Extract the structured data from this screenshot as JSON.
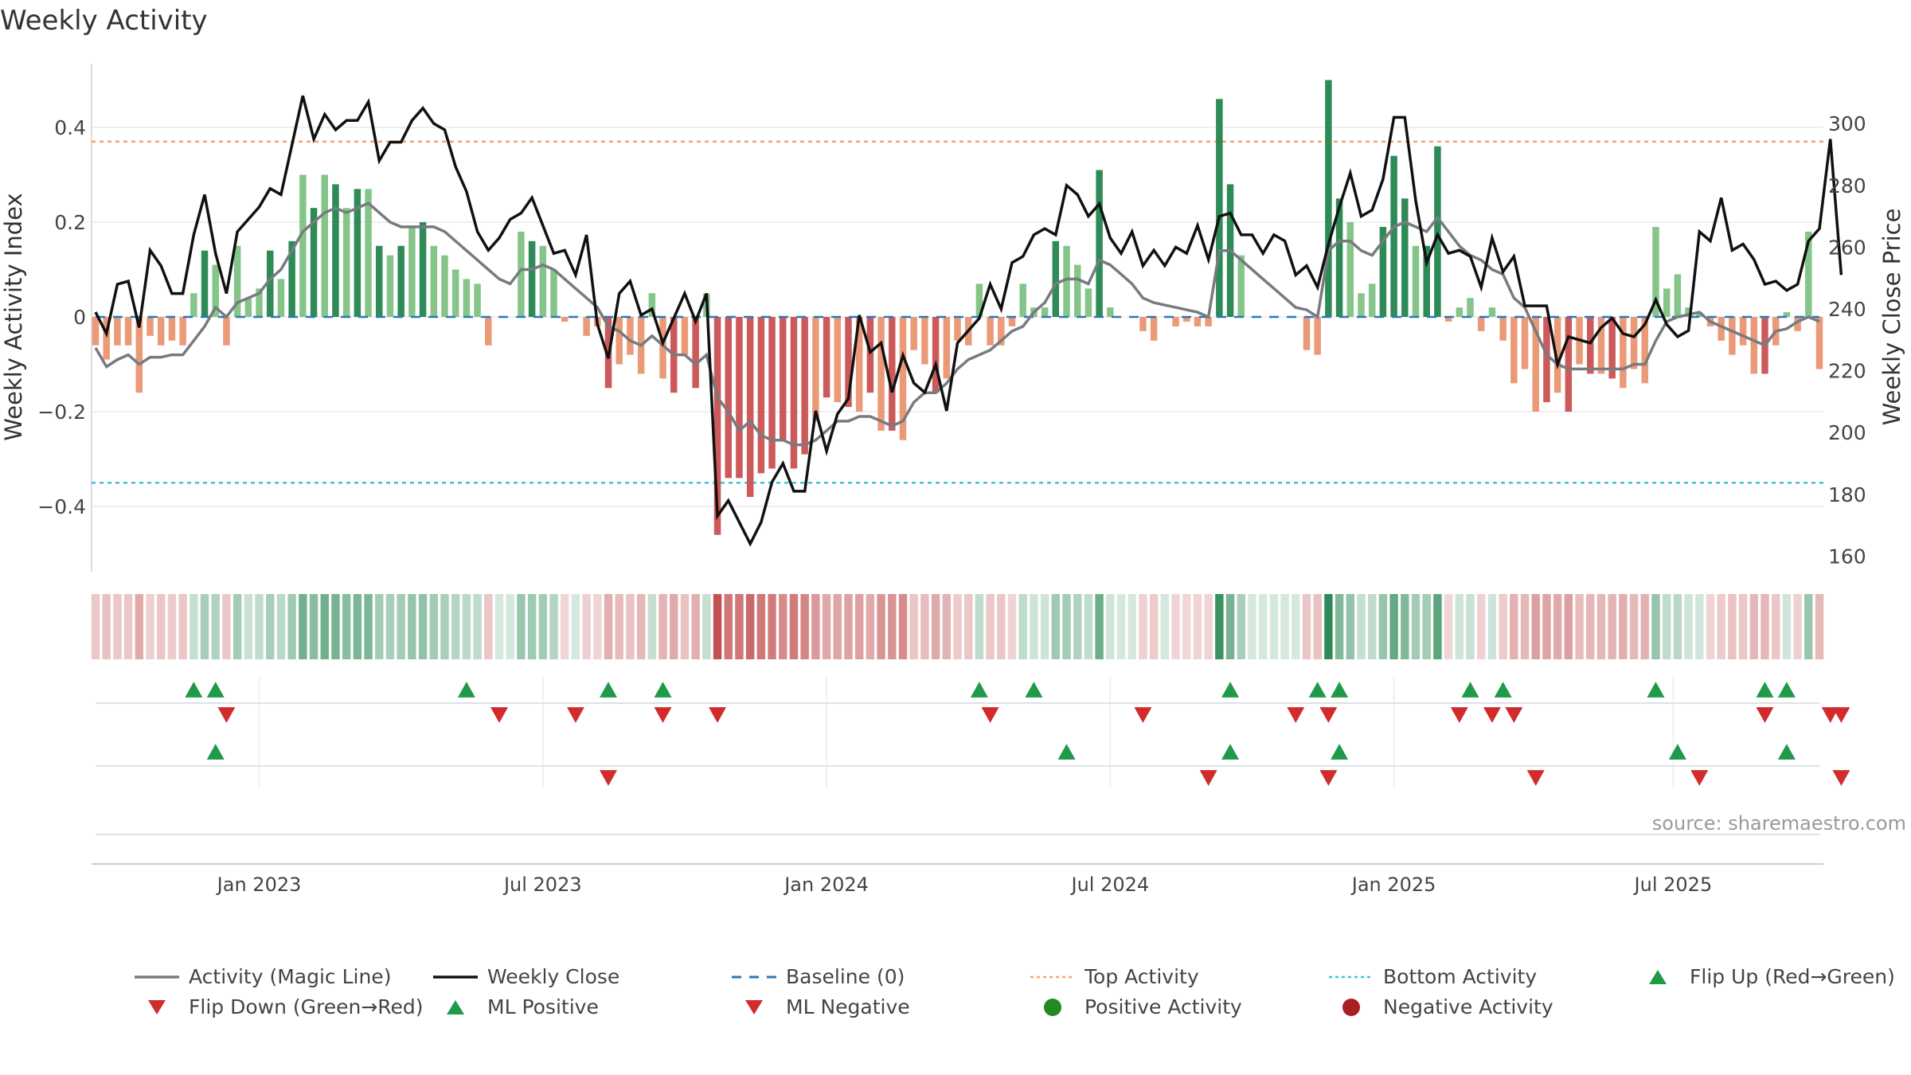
{
  "title": "Weekly Activity",
  "source": "source: sharemaestro.com",
  "colors": {
    "magic": "#777b80",
    "close": "#111111",
    "baseline": "#2a78b8",
    "top": "#f2a36b",
    "bottom": "#3ac5d8",
    "pos_strong": "#2e8b57",
    "pos_light": "#86c58a",
    "neg_strong": "#cc5a5a",
    "neg_light": "#eb9a78",
    "up": "#1f9a49",
    "down": "#d12b2b"
  },
  "chart_data": {
    "type": "bar",
    "title": "Weekly Activity",
    "ylabel": "Weekly Activity Index",
    "y2label": "Weekly Close Price",
    "ylim": [
      -0.53,
      0.54
    ],
    "y2lim": [
      154,
      318
    ],
    "yticks": [
      "0.4",
      "0.2",
      "0",
      "−0.2",
      "−0.4"
    ],
    "yticks_values": [
      0.4,
      0.2,
      0,
      -0.2,
      -0.4
    ],
    "y2ticks": [
      "300",
      "280",
      "260",
      "240",
      "220",
      "200",
      "180",
      "160"
    ],
    "y2ticks_values": [
      300,
      280,
      260,
      240,
      220,
      200,
      180,
      160
    ],
    "xticks": [
      "Jan 2023",
      "Jul 2023",
      "Jan 2024",
      "Jul 2024",
      "Jan 2025",
      "Jul 2025"
    ],
    "xticks_index": [
      15.0,
      41.0,
      67.0,
      93.0,
      119.0,
      144.6
    ],
    "top_activity": 0.37,
    "bottom_activity": -0.35,
    "activity": [
      -0.06,
      -0.09,
      -0.06,
      -0.06,
      -0.16,
      -0.04,
      -0.06,
      -0.05,
      -0.06,
      0.05,
      0.14,
      0.11,
      -0.06,
      0.15,
      0.04,
      0.06,
      0.14,
      0.08,
      0.16,
      0.3,
      0.23,
      0.3,
      0.28,
      0.23,
      0.27,
      0.27,
      0.15,
      0.13,
      0.15,
      0.19,
      0.2,
      0.15,
      0.13,
      0.1,
      0.08,
      0.07,
      -0.06,
      0.0,
      0.0,
      0.18,
      0.16,
      0.15,
      0.1,
      -0.01,
      0.0,
      -0.04,
      -0.02,
      -0.15,
      -0.1,
      -0.08,
      -0.12,
      0.05,
      -0.13,
      -0.16,
      -0.08,
      -0.15,
      0.05,
      -0.46,
      -0.34,
      -0.34,
      -0.38,
      -0.33,
      -0.32,
      -0.26,
      -0.32,
      -0.29,
      -0.22,
      -0.17,
      -0.18,
      -0.19,
      -0.2,
      -0.16,
      -0.24,
      -0.24,
      -0.26,
      -0.07,
      -0.1,
      -0.16,
      -0.13,
      -0.05,
      -0.06,
      0.07,
      -0.06,
      -0.06,
      -0.02,
      0.07,
      0.02,
      0.02,
      0.16,
      0.15,
      0.11,
      0.06,
      0.31,
      0.02,
      0.0,
      0.0,
      -0.03,
      -0.05,
      0.0,
      -0.02,
      -0.01,
      -0.02,
      -0.02,
      0.46,
      0.28,
      0.13,
      0.0,
      0.0,
      0.0,
      0.0,
      0.0,
      -0.07,
      -0.08,
      0.5,
      0.25,
      0.2,
      0.05,
      0.07,
      0.19,
      0.34,
      0.25,
      0.15,
      0.15,
      0.36,
      -0.01,
      0.02,
      0.04,
      -0.03,
      0.02,
      -0.05,
      -0.14,
      -0.11,
      -0.2,
      -0.18,
      -0.16,
      -0.2,
      -0.1,
      -0.12,
      -0.12,
      -0.13,
      -0.15,
      -0.11,
      -0.14,
      0.19,
      0.06,
      0.09,
      0.02,
      0.01,
      -0.02,
      -0.05,
      -0.08,
      -0.06,
      -0.12,
      -0.12,
      -0.06,
      0.01,
      -0.03,
      0.18,
      -0.11
    ],
    "magic_line": [
      -0.065,
      -0.105,
      -0.09,
      -0.08,
      -0.1,
      -0.085,
      -0.085,
      -0.08,
      -0.08,
      -0.05,
      -0.02,
      0.02,
      0.0,
      0.03,
      0.04,
      0.05,
      0.08,
      0.1,
      0.14,
      0.18,
      0.2,
      0.22,
      0.23,
      0.22,
      0.23,
      0.24,
      0.22,
      0.2,
      0.19,
      0.19,
      0.19,
      0.19,
      0.18,
      0.16,
      0.14,
      0.12,
      0.1,
      0.08,
      0.07,
      0.1,
      0.1,
      0.11,
      0.1,
      0.08,
      0.06,
      0.04,
      0.02,
      -0.02,
      -0.03,
      -0.05,
      -0.06,
      -0.04,
      -0.06,
      -0.08,
      -0.08,
      -0.1,
      -0.08,
      -0.17,
      -0.2,
      -0.24,
      -0.22,
      -0.25,
      -0.26,
      -0.26,
      -0.27,
      -0.27,
      -0.26,
      -0.24,
      -0.22,
      -0.22,
      -0.21,
      -0.21,
      -0.22,
      -0.23,
      -0.22,
      -0.18,
      -0.16,
      -0.16,
      -0.14,
      -0.11,
      -0.09,
      -0.08,
      -0.07,
      -0.05,
      -0.03,
      -0.02,
      0.01,
      0.03,
      0.07,
      0.08,
      0.08,
      0.07,
      0.12,
      0.11,
      0.09,
      0.07,
      0.04,
      0.03,
      0.025,
      0.02,
      0.015,
      0.01,
      0.0,
      0.14,
      0.14,
      0.12,
      0.1,
      0.08,
      0.06,
      0.04,
      0.02,
      0.015,
      0.0,
      0.14,
      0.16,
      0.16,
      0.14,
      0.13,
      0.16,
      0.19,
      0.2,
      0.19,
      0.18,
      0.21,
      0.18,
      0.15,
      0.13,
      0.12,
      0.1,
      0.09,
      0.04,
      0.02,
      -0.03,
      -0.08,
      -0.1,
      -0.11,
      -0.11,
      -0.11,
      -0.11,
      -0.11,
      -0.11,
      -0.1,
      -0.1,
      -0.05,
      -0.01,
      0.0,
      0.005,
      0.01,
      -0.01,
      -0.02,
      -0.03,
      -0.04,
      -0.05,
      -0.06,
      -0.03,
      -0.025,
      -0.01,
      0.0,
      -0.01
    ],
    "weekly_close": [
      239,
      232,
      248,
      249,
      234,
      259,
      254,
      245,
      245,
      264,
      277,
      258,
      245,
      265,
      269,
      273,
      279,
      277,
      293,
      309,
      295,
      303,
      298,
      301,
      301,
      307,
      288,
      294,
      294,
      301,
      305,
      300,
      298,
      286,
      278,
      265,
      259,
      263,
      269,
      271,
      276,
      267,
      258,
      259,
      251,
      264,
      235,
      224,
      245,
      249,
      238,
      240,
      229,
      237,
      245,
      236,
      245,
      173,
      178,
      171,
      164,
      171,
      184,
      190,
      181,
      181,
      207,
      194,
      206,
      211,
      238,
      226,
      229,
      213,
      225,
      216,
      213,
      222,
      207,
      229,
      233,
      237,
      248,
      240,
      255,
      257,
      264,
      266,
      264,
      280,
      277,
      270,
      274,
      263,
      258,
      265,
      254,
      259,
      254,
      260,
      258,
      267,
      256,
      270,
      271,
      264,
      264,
      258,
      264,
      262,
      251,
      254,
      247,
      261,
      273,
      284,
      270,
      272,
      282,
      302,
      302,
      275,
      255,
      264,
      258,
      259,
      257,
      247,
      263,
      252,
      257,
      241,
      241,
      241,
      222,
      231,
      230,
      229,
      234,
      237,
      232,
      231,
      235,
      243,
      235,
      231,
      233,
      265,
      262,
      276,
      259,
      261,
      256,
      248,
      249,
      246,
      248,
      262,
      266,
      295,
      251
    ],
    "ml_flips_up": [
      9,
      11,
      34,
      47,
      52,
      81,
      86,
      104,
      112,
      114,
      126,
      129,
      143,
      153,
      155
    ],
    "ml_flips_down": [
      12,
      37,
      44,
      52,
      57,
      82,
      96,
      110,
      113,
      125,
      128,
      130,
      153,
      159,
      160
    ],
    "ml_positive": [
      11,
      89,
      104,
      114,
      145,
      155
    ],
    "ml_negative": [
      47,
      102,
      113,
      132,
      147,
      160
    ]
  },
  "legend": [
    {
      "label": "Activity (Magic Line)",
      "kind": "line-magic"
    },
    {
      "label": "Weekly Close",
      "kind": "line-close"
    },
    {
      "label": "Baseline (0)",
      "kind": "dash-baseline"
    },
    {
      "label": "Top Activity",
      "kind": "dot-top"
    },
    {
      "label": "Bottom Activity",
      "kind": "dot-bottom"
    },
    {
      "label": "Flip Up (Red→Green)",
      "kind": "tri-up"
    },
    {
      "label": "Flip Down (Green→Red)",
      "kind": "tri-down"
    },
    {
      "label": "ML Positive",
      "kind": "tri-up"
    },
    {
      "label": "ML Negative",
      "kind": "tri-down"
    },
    {
      "label": "Positive Activity",
      "kind": "circle-pos"
    },
    {
      "label": "Negative Activity",
      "kind": "circle-neg"
    }
  ]
}
